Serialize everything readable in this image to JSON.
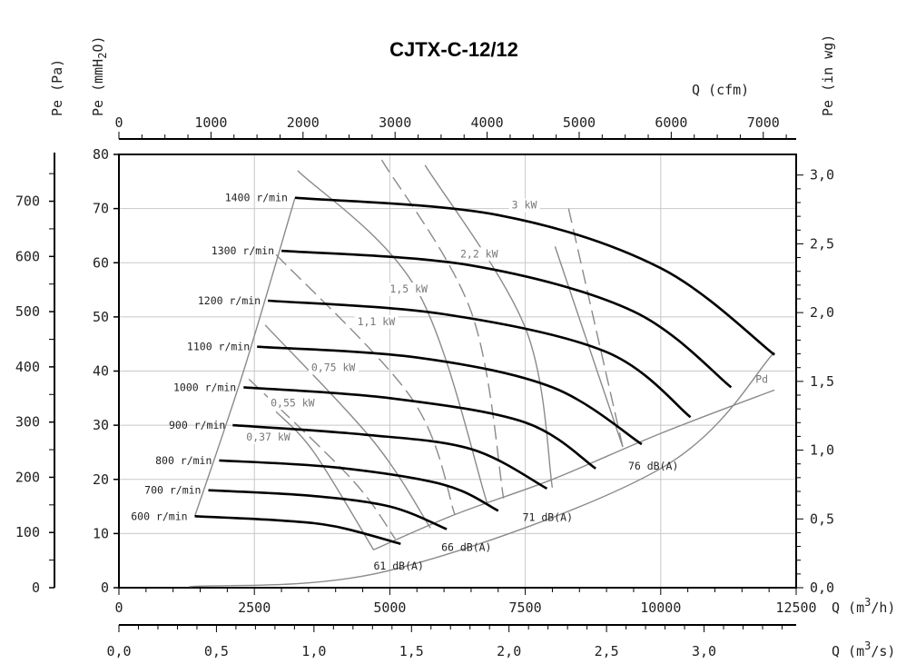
{
  "chart_data": {
    "type": "line",
    "title": "CJTX-C-12/12",
    "axes": {
      "left_pa": {
        "label": "Pe (Pa)",
        "range": [
          0,
          784.8
        ],
        "ticks": [
          0,
          100,
          200,
          300,
          400,
          500,
          600,
          700
        ]
      },
      "left_mmh2o": {
        "label_main": "Pe (mmH",
        "label_sub": "2",
        "label_end": "O)",
        "range": [
          0,
          80
        ],
        "ticks": [
          0,
          10,
          20,
          30,
          40,
          50,
          60,
          70,
          80
        ]
      },
      "right_inwg": {
        "label": "Pe (in wg)",
        "range": [
          0,
          3.15
        ],
        "ticks": [
          "0,0",
          "0,5",
          "1,0",
          "1,5",
          "2,0",
          "2,5",
          "3,0"
        ]
      },
      "bottom_m3h": {
        "label_main": "Q (m",
        "label_sup": "3",
        "label_end": "/h)",
        "range": [
          0,
          12500
        ],
        "ticks": [
          0,
          2500,
          5000,
          7500,
          10000,
          12500
        ]
      },
      "bottom_m3s": {
        "label_main": "Q (m",
        "label_sup": "3",
        "label_end": "/s)",
        "ticks": [
          "0,0",
          "0,5",
          "1,0",
          "1,5",
          "2,0",
          "2,5",
          "3,0"
        ]
      },
      "top_cfm": {
        "label": "Q (cfm)",
        "ticks": [
          0,
          1000,
          2000,
          3000,
          4000,
          5000,
          6000,
          7000
        ]
      }
    },
    "grid": true,
    "speed_curves": [
      {
        "label": "600 r/min",
        "points": [
          [
            1400,
            13.2
          ],
          [
            3000,
            12.4
          ],
          [
            4000,
            11.3
          ],
          [
            5200,
            8.1
          ]
        ]
      },
      {
        "label": "700 r/min",
        "points": [
          [
            1650,
            18.0
          ],
          [
            3500,
            17.0
          ],
          [
            5000,
            15.0
          ],
          [
            6050,
            10.8
          ]
        ]
      },
      {
        "label": "800 r/min",
        "points": [
          [
            1850,
            23.5
          ],
          [
            4000,
            22.2
          ],
          [
            6000,
            19.0
          ],
          [
            7000,
            14.2
          ]
        ]
      },
      {
        "label": "900 r/min",
        "points": [
          [
            2100,
            30.0
          ],
          [
            4500,
            28.3
          ],
          [
            6500,
            25.6
          ],
          [
            7900,
            18.3
          ]
        ]
      },
      {
        "label": "1000 r/min",
        "points": [
          [
            2300,
            37.0
          ],
          [
            5000,
            35.0
          ],
          [
            7500,
            30.5
          ],
          [
            8800,
            22.0
          ]
        ]
      },
      {
        "label": "1100 r/min",
        "points": [
          [
            2550,
            44.5
          ],
          [
            5500,
            42.5
          ],
          [
            8000,
            37.0
          ],
          [
            9650,
            26.5
          ]
        ]
      },
      {
        "label": "1200 r/min",
        "points": [
          [
            2750,
            53.0
          ],
          [
            6000,
            50.5
          ],
          [
            9000,
            43.5
          ],
          [
            10550,
            31.5
          ]
        ]
      },
      {
        "label": "1300 r/min",
        "points": [
          [
            3000,
            62.2
          ],
          [
            6500,
            59.5
          ],
          [
            9500,
            51.0
          ],
          [
            11300,
            37.0
          ]
        ]
      },
      {
        "label": "1400 r/min",
        "points": [
          [
            3250,
            72.0
          ],
          [
            7000,
            68.8
          ],
          [
            10000,
            59.0
          ],
          [
            12100,
            43.0
          ]
        ]
      }
    ],
    "stall_line": [
      [
        1400,
        13.2
      ],
      [
        2300,
        40.0
      ],
      [
        3250,
        72.0
      ]
    ],
    "power_lines": [
      {
        "label": "0,37 kW",
        "style": "solid",
        "points": [
          [
            2900,
            32.5
          ],
          [
            3600,
            25
          ],
          [
            4700,
            7
          ]
        ]
      },
      {
        "label": "0,55 kW",
        "style": "dashed",
        "points": [
          [
            2400,
            38.5
          ],
          [
            4300,
            20
          ],
          [
            5100,
            9
          ]
        ]
      },
      {
        "label": "0,75 kW",
        "style": "solid",
        "points": [
          [
            2700,
            48.5
          ],
          [
            4700,
            27
          ],
          [
            5750,
            11
          ]
        ]
      },
      {
        "label": "1,1 kW",
        "style": "dashed",
        "points": [
          [
            2900,
            61.5
          ],
          [
            5400,
            35
          ],
          [
            6200,
            13.5
          ]
        ]
      },
      {
        "label": "1,5 kW",
        "style": "solid",
        "points": [
          [
            3300,
            77.0
          ],
          [
            5500,
            55
          ],
          [
            6800,
            15.5
          ]
        ]
      },
      {
        "label": "2,2 kW",
        "style": "dashed",
        "points": [
          [
            4850,
            79.0
          ],
          [
            6500,
            51
          ],
          [
            7100,
            16.5
          ]
        ]
      },
      {
        "label": "3 kW",
        "style": "solid",
        "points": [
          [
            5650,
            78.0
          ],
          [
            7500,
            48
          ],
          [
            8000,
            18.5
          ]
        ]
      },
      {
        "label": "",
        "style": "dashed",
        "points": [
          [
            8300,
            70.0
          ],
          [
            9300,
            26
          ]
        ]
      },
      {
        "label": "",
        "style": "solid",
        "points": [
          [
            8050,
            63.0
          ],
          [
            9300,
            26
          ]
        ]
      }
    ],
    "pd_curve": {
      "label": "Pd",
      "points": [
        [
          1300,
          0.2
        ],
        [
          5000,
          3.2
        ],
        [
          10000,
          22.0
        ],
        [
          12100,
          43.5
        ]
      ]
    },
    "db_curve": {
      "points": [
        [
          4700,
          7.0
        ],
        [
          6200,
          13.5
        ],
        [
          8000,
          20.0
        ],
        [
          10000,
          28.5
        ],
        [
          12100,
          36.5
        ]
      ]
    },
    "db_labels": [
      "61 dB(A)",
      "66 dB(A)",
      "71 dB(A)",
      "76 dB(A)"
    ]
  }
}
